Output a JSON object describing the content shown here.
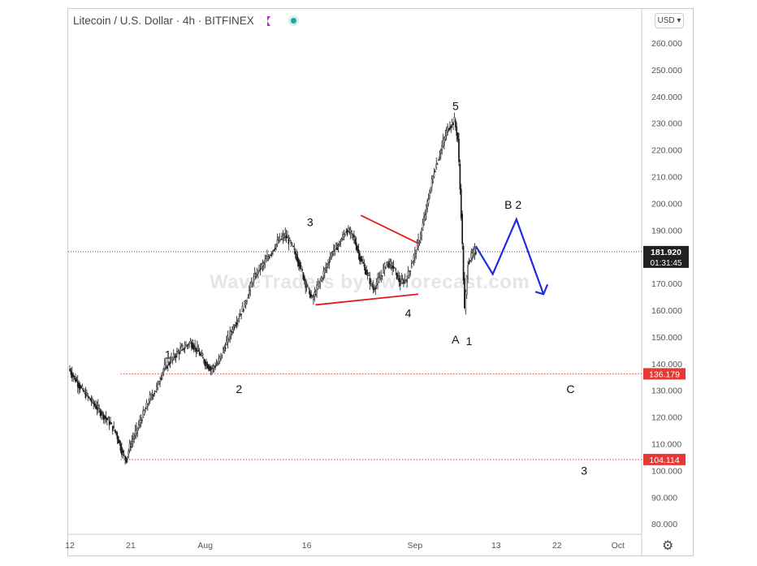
{
  "header": {
    "title": "Litecoin / U.S. Dollar · 4h · BITFINEX",
    "flag_icon": "flag-icon",
    "status_icon": "market-status-icon",
    "currency_selector": "USD"
  },
  "watermark": "WaveTraders by ew-forecast.com",
  "chart_data": {
    "type": "candlestick",
    "symbol": "Litecoin / U.S. Dollar",
    "interval": "4h",
    "exchange": "BITFINEX",
    "y_ticks": [
      80,
      90,
      100,
      110,
      120,
      130,
      140,
      150,
      160,
      170,
      180,
      190,
      200,
      210,
      220,
      230,
      240,
      250,
      260
    ],
    "y_tick_labels": [
      "80.000",
      "90.000",
      "100.000",
      "110.000",
      "120.000",
      "130.000",
      "140.000",
      "150.000",
      "160.000",
      "170.000",
      "180.000",
      "190.000",
      "200.000",
      "210.000",
      "220.000",
      "230.000",
      "240.000",
      "250.000",
      "260.000"
    ],
    "x_ticks": [
      {
        "label": "12",
        "day": 12
      },
      {
        "label": "21",
        "day": 21
      },
      {
        "label": "Aug",
        "day": 32
      },
      {
        "label": "16",
        "day": 47
      },
      {
        "label": "Sep",
        "day": 63
      },
      {
        "label": "13",
        "day": 75
      },
      {
        "label": "22",
        "day": 84
      },
      {
        "label": "Oct",
        "day": 93
      }
    ],
    "price_path": [
      [
        12,
        138
      ],
      [
        13,
        134
      ],
      [
        14,
        130
      ],
      [
        15,
        127
      ],
      [
        16,
        124
      ],
      [
        17,
        121
      ],
      [
        18,
        118
      ],
      [
        19,
        114
      ],
      [
        20,
        106
      ],
      [
        20.5,
        104.3
      ],
      [
        21,
        109
      ],
      [
        22,
        115
      ],
      [
        23,
        121
      ],
      [
        24,
        127
      ],
      [
        25,
        131
      ],
      [
        26,
        138
      ],
      [
        27,
        141
      ],
      [
        28,
        144
      ],
      [
        29,
        146
      ],
      [
        30,
        148
      ],
      [
        31,
        145
      ],
      [
        32,
        141
      ],
      [
        33,
        138
      ],
      [
        34,
        140
      ],
      [
        35,
        146
      ],
      [
        36,
        152
      ],
      [
        37,
        157
      ],
      [
        38,
        162
      ],
      [
        39,
        170
      ],
      [
        40,
        175
      ],
      [
        41,
        178
      ],
      [
        42,
        182
      ],
      [
        43,
        186
      ],
      [
        44,
        188
      ],
      [
        45,
        184
      ],
      [
        46,
        178
      ],
      [
        47,
        170
      ],
      [
        48,
        164
      ],
      [
        49,
        170
      ],
      [
        50,
        176
      ],
      [
        51,
        182
      ],
      [
        52,
        185
      ],
      [
        53,
        190
      ],
      [
        54,
        188
      ],
      [
        55,
        180
      ],
      [
        56,
        174
      ],
      [
        57,
        168
      ],
      [
        58,
        172
      ],
      [
        59,
        178
      ],
      [
        60,
        176
      ],
      [
        61,
        170
      ],
      [
        62,
        172
      ],
      [
        63,
        180
      ],
      [
        64,
        188
      ],
      [
        65,
        200
      ],
      [
        66,
        212
      ],
      [
        67,
        220
      ],
      [
        68,
        228
      ],
      [
        69,
        231
      ],
      [
        69.5,
        224
      ],
      [
        70,
        196
      ],
      [
        70.5,
        160
      ],
      [
        71,
        178
      ],
      [
        72,
        182
      ]
    ],
    "last_price": {
      "value": 181.92,
      "label": "181.920",
      "countdown": "01:31:45"
    },
    "levels": [
      {
        "value": 136.179,
        "label": "136.179",
        "from_day": 19.5
      },
      {
        "value": 104.114,
        "label": "104.114",
        "from_day": 19.5
      }
    ],
    "wave_labels": [
      {
        "text": "1",
        "day": 26.5,
        "price": 143.5
      },
      {
        "text": "2",
        "day": 37,
        "price": 130.5
      },
      {
        "text": "3",
        "day": 47.5,
        "price": 193
      },
      {
        "text": "4",
        "day": 62,
        "price": 159
      },
      {
        "text": "5",
        "day": 69,
        "price": 236.5
      },
      {
        "text": "A",
        "day": 69,
        "price": 149
      },
      {
        "text": "1",
        "day": 71,
        "price": 148.5
      },
      {
        "text": "B 2",
        "day": 77.5,
        "price": 199.5
      },
      {
        "text": "C",
        "day": 86,
        "price": 130.5
      },
      {
        "text": "3",
        "day": 88,
        "price": 100
      }
    ],
    "triangle_lines": [
      {
        "from": [
          55,
          195.5
        ],
        "to": [
          63.5,
          185
        ]
      },
      {
        "from": [
          48.3,
          162
        ],
        "to": [
          63.5,
          166
        ]
      }
    ],
    "projection_path": [
      [
        72,
        184
      ],
      [
        74.5,
        173.5
      ],
      [
        78,
        194
      ],
      [
        82,
        166
      ]
    ],
    "colors": {
      "candles": "#1a1a1a",
      "triangle": "#e31b1b",
      "projection": "#1f2be0",
      "level_line": "#e53935",
      "level_tag": "#e53935",
      "last_price_tag": "#202020",
      "axis_text": "#555555"
    }
  }
}
